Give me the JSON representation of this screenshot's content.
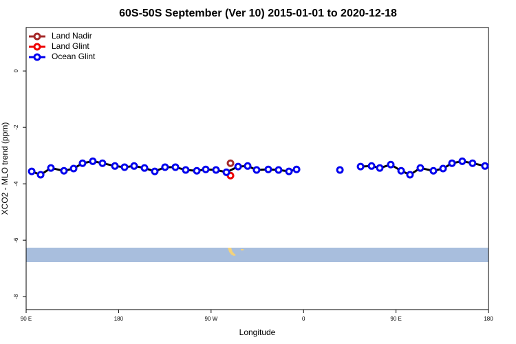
{
  "chart_data": {
    "type": "line",
    "title": "60S-50S September (Ver 10)   2015-01-01 to 2020-12-18",
    "x_label": "Longitude",
    "y_label": "XCO2 - MLO trend (ppm)",
    "xlim": [
      90,
      540
    ],
    "ylim": [
      -8.46,
      1.54
    ],
    "xticks": [
      {
        "value": 90,
        "label": "90 E"
      },
      180,
      {
        "value": 270,
        "label": "90 W"
      },
      {
        "value": 360,
        "label": "0"
      },
      {
        "value": 450,
        "label": "90 E"
      },
      {
        "value": 540,
        "label": "180"
      }
    ],
    "yticks": [
      0,
      -2,
      -4,
      -6,
      -8
    ],
    "legend": "top-left",
    "series": [
      {
        "name": "Land Nadir",
        "color": "#a52a2a",
        "x": [
          288.9
        ],
        "values": [
          -3.27
        ]
      },
      {
        "name": "Land Glint",
        "color": "#ee0000",
        "x": [
          288.9
        ],
        "values": [
          -3.71
        ]
      },
      {
        "name": "Ocean Glint",
        "color": "#0000ee",
        "x": [
          95.4,
          104.1,
          114.1,
          126.8,
          136.2,
          144.9,
          154.9,
          164.3,
          176.4,
          185.8,
          195.1,
          205.2,
          215.2,
          225.2,
          235.3,
          245.3,
          256.1,
          264.8,
          274.8,
          284.9,
          296.3,
          305.6,
          314.3,
          325.7,
          335.7,
          345.8,
          353.2,
          null,
          395.4,
          null,
          415.5,
          426.2,
          434.2,
          444.9,
          455.0,
          463.6,
          473.7,
          486.4,
          495.8,
          504.5,
          514.5,
          524.5,
          536.6
        ],
        "values": [
          -3.56,
          -3.68,
          -3.44,
          -3.54,
          -3.46,
          -3.27,
          -3.2,
          -3.27,
          -3.37,
          -3.41,
          -3.37,
          -3.44,
          -3.56,
          -3.41,
          -3.41,
          -3.51,
          -3.54,
          -3.49,
          -3.51,
          -3.59,
          -3.39,
          -3.37,
          -3.51,
          -3.49,
          -3.51,
          -3.56,
          -3.49,
          null,
          -3.51,
          null,
          -3.39,
          -3.37,
          -3.44,
          -3.32,
          -3.54,
          -3.68,
          -3.44,
          -3.54,
          -3.46,
          -3.27,
          -3.2,
          -3.27,
          -3.37
        ]
      }
    ]
  }
}
